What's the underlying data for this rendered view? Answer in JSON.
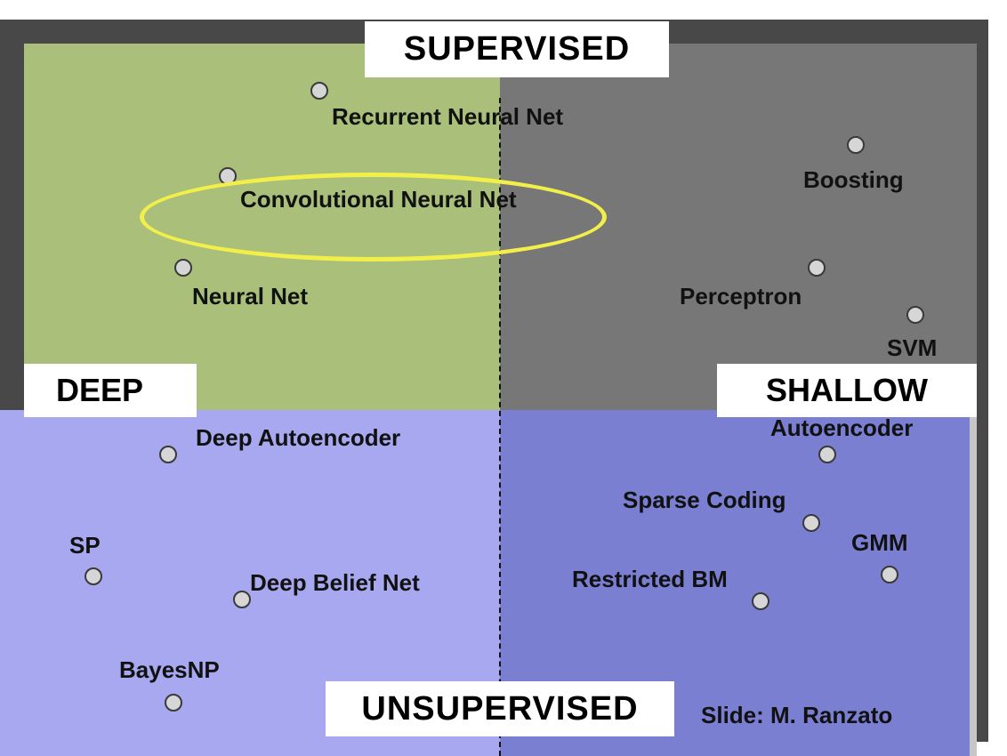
{
  "banners": {
    "supervised": "SUPERVISED",
    "unsupervised": "UNSUPERVISED",
    "deep": "DEEP",
    "shallow": "SHALLOW"
  },
  "methods": {
    "recurrent_neural_net": "Recurrent Neural Net",
    "convolutional_neural_net": "Convolutional Neural Net",
    "neural_net": "Neural Net",
    "boosting": "Boosting",
    "perceptron": "Perceptron",
    "svm": "SVM",
    "deep_autoencoder": "Deep Autoencoder",
    "sp": "SP",
    "deep_belief_net": "Deep Belief Net",
    "bayesnp": "BayesNP",
    "autoencoder": "Autoencoder",
    "sparse_coding": "Sparse Coding",
    "gmm": "GMM",
    "restricted_bm": "Restricted BM"
  },
  "credit": "Slide: M. Ranzato",
  "colors": {
    "supervised_deep": "#a9bf7a",
    "supervised_shallow": "#777777",
    "unsupervised_deep": "#a8a8f0",
    "unsupervised_shallow": "#7b7fd1",
    "highlight_ellipse": "#f3ef4a"
  }
}
